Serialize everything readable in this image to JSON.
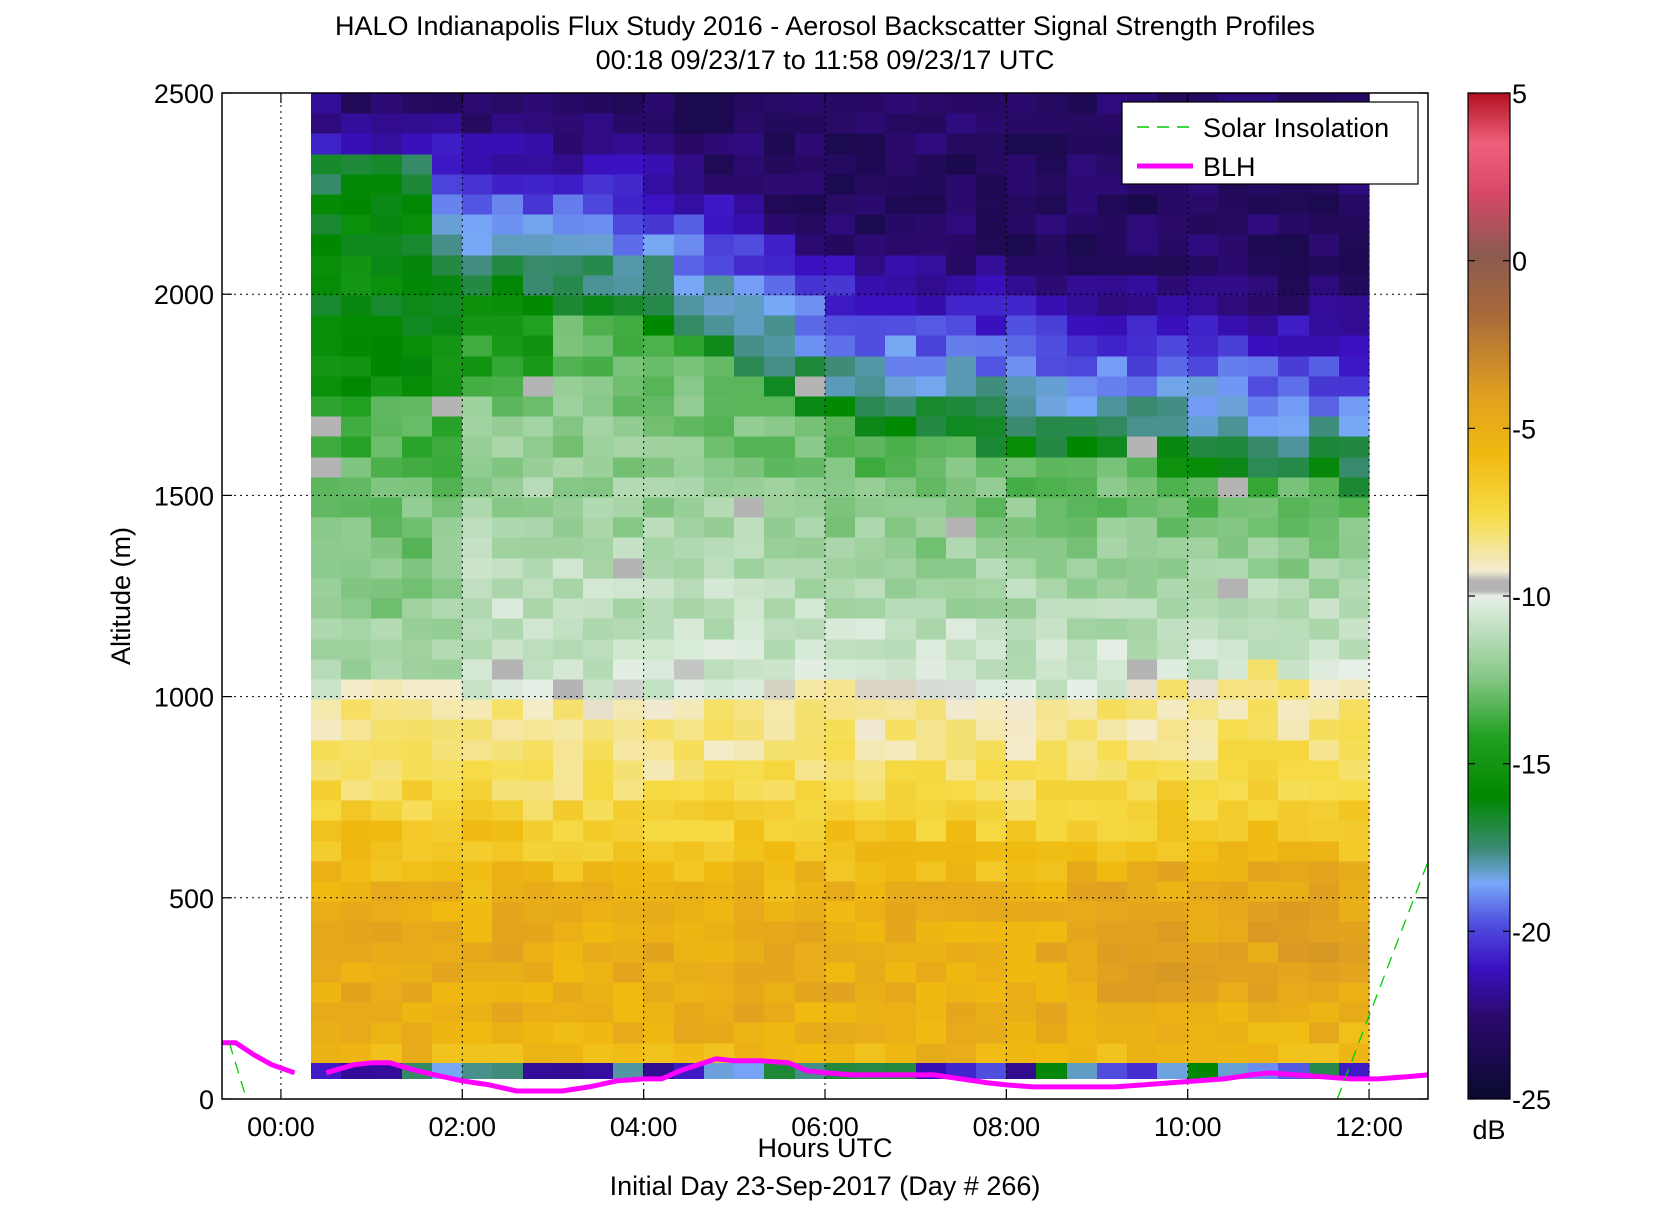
{
  "chart_data": {
    "type": "heatmap",
    "title": "HALO Indianapolis Flux Study 2016 - Aerosol Backscatter Signal Strength Profiles",
    "subtitle": "00:18 09/23/17 to 11:58 09/23/17  UTC",
    "xlabel": "Hours UTC",
    "xlabel2": "Initial Day 23-Sep-2017 (Day # 266)",
    "ylabel": "Altitude (m)",
    "xlim": [
      -0.65,
      12.65
    ],
    "ylim": [
      0,
      2500
    ],
    "x_ticks": [
      0,
      2,
      4,
      6,
      8,
      10,
      12
    ],
    "x_tick_labels": [
      "00:00",
      "02:00",
      "04:00",
      "06:00",
      "08:00",
      "10:00",
      "12:00"
    ],
    "y_ticks": [
      0,
      500,
      1000,
      1500,
      2000,
      2500
    ],
    "y_tick_labels": [
      "0",
      "500",
      "1000",
      "1500",
      "2000",
      "2500"
    ],
    "grid": true,
    "legend": {
      "placement": "top-right",
      "entries": [
        "Solar Insolation",
        "BLH"
      ]
    },
    "colorbar": {
      "label": "dB",
      "range": [
        -25,
        5
      ],
      "ticks": [
        -25,
        -20,
        -15,
        -10,
        -5,
        0,
        5
      ],
      "tick_labels": [
        "-25",
        "-20",
        "-15",
        "-10",
        "-5",
        "0",
        "5"
      ]
    },
    "heatmap": {
      "x_start": 0.33,
      "x_end": 12.0,
      "y_start": 90,
      "y_end": 2500,
      "nx": 35,
      "ny": 48,
      "bottom_row_y": [
        50,
        90
      ],
      "bottom_row_value": -19,
      "value_units": "dB",
      "description_of_fill": "mixed layer near -6 dB below ~1000 m, residual layer near -10 to -13 dB, free troposphere -17 to -24 dB aloft"
    },
    "series": [
      {
        "name": "BLH",
        "color": "#ff00ff",
        "x": [
          -0.65,
          -0.5,
          -0.3,
          -0.1,
          0.15,
          0.5,
          0.8,
          1.0,
          1.2,
          1.5,
          1.8,
          2.0,
          2.3,
          2.6,
          2.9,
          3.1,
          3.4,
          3.7,
          4.0,
          4.2,
          4.4,
          4.6,
          4.8,
          5.0,
          5.3,
          5.6,
          5.8,
          6.0,
          6.3,
          6.6,
          6.9,
          7.2,
          7.5,
          7.8,
          8.0,
          8.3,
          8.6,
          8.9,
          9.2,
          9.5,
          9.8,
          10.1,
          10.4,
          10.7,
          10.9,
          11.2,
          11.5,
          11.8,
          12.1,
          12.4,
          12.65
        ],
        "y": [
          140,
          140,
          110,
          85,
          65,
          65,
          85,
          90,
          90,
          70,
          55,
          45,
          35,
          20,
          20,
          20,
          30,
          45,
          50,
          50,
          70,
          85,
          100,
          95,
          95,
          90,
          70,
          65,
          60,
          60,
          60,
          60,
          50,
          40,
          35,
          30,
          30,
          30,
          30,
          35,
          40,
          45,
          50,
          60,
          65,
          60,
          55,
          50,
          50,
          55,
          60
        ],
        "gaps_after_x": [
          0.15
        ]
      },
      {
        "name": "Solar Insolation",
        "color": "#00cc00",
        "segments": [
          {
            "x": [
              -0.57,
              -0.38
            ],
            "y": [
              140,
              0
            ]
          },
          {
            "x": [
              11.65,
              12.65
            ],
            "y": [
              0,
              590
            ]
          }
        ]
      }
    ]
  }
}
